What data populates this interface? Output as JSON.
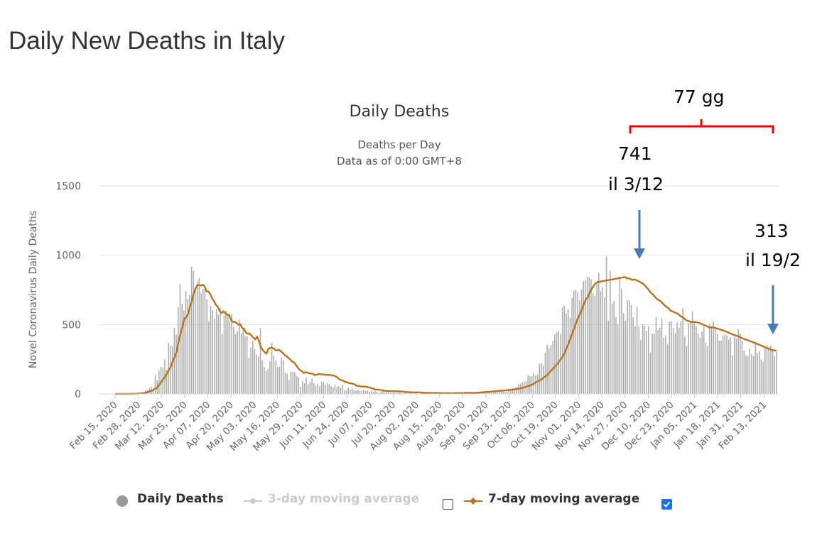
{
  "page_title": "Daily New Deaths in Italy",
  "colors": {
    "bar": "#aaaaaa",
    "ma7": "#b8741a",
    "ma3_disabled": "#cccccc",
    "grid": "#e6e6e6",
    "annotation_bracket": "#ff0000",
    "annotation_arrow": "#4a7ab5",
    "checkbox_checked": "#1a73e8"
  },
  "legend": {
    "daily_deaths": "Daily Deaths",
    "ma3": "3-day moving average",
    "ma7": "7-day moving average",
    "ma3_checked": false,
    "ma7_checked": true
  },
  "annotations": {
    "bracket_label": "77 gg",
    "peak_value": "741",
    "peak_date": "il 3/12",
    "latest_value": "313",
    "latest_date": "il 19/2"
  },
  "chart_data": {
    "type": "bar",
    "title": "Daily Deaths",
    "subtitle_line1": "Deaths per Day",
    "subtitle_line2": "Data as of 0:00 GMT+8",
    "ylabel": "Novel Coronavirus Daily Deaths",
    "xlabel": "",
    "ylim": [
      0,
      1500
    ],
    "yticks": [
      0,
      500,
      1000,
      1500
    ],
    "grid": true,
    "legend_position": "bottom",
    "x_start": "Feb 15, 2020",
    "x_end": "Feb 20, 2021",
    "x_tick_labels": [
      "Feb 15, 2020",
      "Feb 28, 2020",
      "Mar 12, 2020",
      "Mar 25, 2020",
      "Apr 07, 2020",
      "Apr 20, 2020",
      "May 03, 2020",
      "May 16, 2020",
      "May 29, 2020",
      "Jun 11, 2020",
      "Jun 24, 2020",
      "Jul 07, 2020",
      "Jul 20, 2020",
      "Aug 02, 2020",
      "Aug 15, 2020",
      "Aug 28, 2020",
      "Sep 10, 2020",
      "Sep 23, 2020",
      "Oct 06, 2020",
      "Oct 19, 2020",
      "Nov 01, 2020",
      "Nov 14, 2020",
      "Nov 27, 2020",
      "Dec 10, 2020",
      "Dec 23, 2020",
      "Jan 05, 2021",
      "Jan 18, 2021",
      "Jan 31, 2021",
      "Feb 13, 2021"
    ],
    "series": [
      {
        "name": "Daily Deaths",
        "kind": "bar",
        "values": [
          0,
          0,
          0,
          0,
          0,
          0,
          0,
          1,
          2,
          3,
          2,
          4,
          5,
          8,
          12,
          11,
          27,
          28,
          41,
          49,
          36,
          133,
          97,
          168,
          196,
          189,
          250,
          175,
          368,
          349,
          345,
          475,
          427,
          627,
          793,
          651,
          601,
          743,
          683,
          712,
          919,
          889,
          756,
          812,
          837,
          727,
          760,
          766,
          681,
          525,
          636,
          604,
          542,
          610,
          570,
          619,
          431,
          566,
          602,
          578,
          525,
          575,
          482,
          433,
          454,
          534,
          437,
          464,
          420,
          415,
          260,
          333,
          382,
          323,
          285,
          269,
          474,
          243,
          194,
          165,
          179,
          236,
          369,
          274,
          243,
          194,
          195,
          262,
          242,
          153,
          145,
          99,
          162,
          161,
          156,
          130,
          119,
          50,
          92,
          78,
          117,
          70,
          87,
          111,
          75,
          60,
          71,
          53,
          88,
          85,
          65,
          79,
          71,
          56,
          47,
          67,
          49,
          55,
          44,
          66,
          26,
          26,
          46,
          31,
          41,
          26,
          23,
          30,
          22,
          21,
          30,
          21,
          24,
          17,
          21,
          14,
          24,
          15,
          9,
          13,
          25,
          11,
          20,
          12,
          9,
          9,
          13,
          6,
          11,
          10,
          5,
          4,
          8,
          5,
          12,
          7,
          12,
          9,
          6,
          3,
          6,
          5,
          7,
          6,
          8,
          5,
          4,
          6,
          2,
          5,
          2,
          8,
          8,
          6,
          4,
          8,
          6,
          9,
          13,
          7,
          8,
          4,
          5,
          6,
          10,
          10,
          6,
          9,
          12,
          14,
          10,
          15,
          13,
          20,
          24,
          9,
          13,
          16,
          22,
          18,
          17,
          23,
          28,
          19,
          14,
          16,
          39,
          22,
          43,
          39,
          47,
          69,
          73,
          83,
          91,
          89,
          136,
          127,
          128,
          151,
          131,
          141,
          217,
          221,
          207,
          297,
          352,
          331,
          353,
          382,
          428,
          444,
          454,
          432,
          623,
          636,
          580,
          613,
          550,
          692,
          743,
          754,
          731,
          675,
          753,
          812,
          822,
          846,
          840,
          827,
          725,
          707,
          801,
          872,
          741,
          769,
          699,
          993,
          528,
          887,
          649,
          672,
          555,
          499,
          846,
          761,
          581,
          528,
          676,
          674,
          642,
          553,
          487,
          628,
          486,
          388,
          502,
          491,
          457,
          488,
          298,
          436,
          433,
          555,
          460,
          478,
          546,
          405,
          421,
          357,
          522,
          524,
          474,
          438,
          516,
          477,
          526,
          617,
          414,
          346,
          509,
          521,
          596,
          528,
          489,
          436,
          404,
          450,
          483,
          370,
          345,
          501,
          489,
          524,
          476,
          432,
          384,
          384,
          421,
          428,
          421,
          390,
          408,
          276,
          413,
          398,
          467,
          436,
          385,
          314,
          279,
          272,
          326,
          288,
          271,
          374,
          295,
          309,
          247,
          231,
          333,
          353,
          336,
          347,
          315,
          274,
          301
        ]
      },
      {
        "name": "7-day moving average",
        "kind": "line",
        "values": [
          0,
          0,
          0,
          0,
          0,
          0,
          0,
          0,
          0,
          1,
          1,
          1,
          2,
          3,
          4,
          5,
          8,
          11,
          16,
          21,
          24,
          36,
          40,
          55,
          73,
          93,
          111,
          127,
          153,
          178,
          201,
          240,
          270,
          306,
          379,
          434,
          482,
          540,
          552,
          577,
          627,
          665,
          723,
          758,
          785,
          783,
          781,
          788,
          772,
          739,
          738,
          719,
          688,
          667,
          641,
          628,
          598,
          583,
          595,
          582,
          570,
          571,
          534,
          519,
          520,
          512,
          499,
          503,
          476,
          469,
          443,
          434,
          435,
          421,
          406,
          393,
          413,
          381,
          339,
          317,
          301,
          290,
          325,
          332,
          334,
          327,
          314,
          316,
          318,
          303,
          293,
          277,
          271,
          257,
          245,
          230,
          226,
          204,
          186,
          171,
          164,
          151,
          158,
          152,
          149,
          147,
          144,
          135,
          139,
          144,
          141,
          141,
          140,
          137,
          136,
          138,
          133,
          133,
          126,
          118,
          106,
          99,
          96,
          86,
          85,
          78,
          77,
          74,
          71,
          60,
          58,
          55,
          54,
          52,
          53,
          49,
          47,
          42,
          39,
          33,
          31,
          30,
          29,
          25,
          23,
          22,
          20,
          20,
          20,
          20,
          19,
          19,
          18,
          18,
          16,
          14,
          14,
          13,
          12,
          12,
          11,
          11,
          11,
          11,
          10,
          9,
          8,
          7,
          7,
          7,
          6,
          7,
          7,
          6,
          6,
          6,
          5,
          5,
          6,
          5,
          5,
          5,
          6,
          6,
          6,
          6,
          6,
          7,
          8,
          8,
          8,
          8,
          8,
          8,
          8,
          10,
          11,
          12,
          13,
          14,
          15,
          16,
          18,
          19,
          20,
          22,
          23,
          23,
          25,
          26,
          27,
          28,
          30,
          31,
          34,
          36,
          38,
          40,
          44,
          47,
          51,
          56,
          60,
          66,
          73,
          82,
          89,
          96,
          105,
          113,
          123,
          133,
          148,
          163,
          177,
          191,
          206,
          221,
          242,
          258,
          279,
          309,
          341,
          374,
          409,
          446,
          484,
          524,
          555,
          581,
          616,
          653,
          685,
          697,
          730,
          756,
          777,
          796,
          806,
          808,
          811,
          813,
          816,
          819,
          821,
          823,
          826,
          828,
          831,
          833,
          836,
          838,
          841,
          843,
          834,
          832,
          828,
          822,
          826,
          820,
          814,
          806,
          800,
          789,
          776,
          760,
          742,
          726,
          716,
          698,
          686,
          676,
          668,
          654,
          640,
          628,
          621,
          604,
          597,
          591,
          585,
          580,
          568,
          558,
          551,
          538,
          529,
          525,
          519,
          519,
          519,
          517,
          515,
          510,
          505,
          497,
          492,
          486,
          479,
          479,
          479,
          477,
          473,
          468,
          464,
          459,
          455,
          449,
          444,
          438,
          432,
          427,
          422,
          418,
          412,
          405,
          400,
          395,
          390,
          385,
          380,
          375,
          370,
          364,
          359,
          353,
          347,
          341,
          335,
          330,
          325,
          320,
          316,
          313,
          313
        ]
      },
      {
        "name": "3-day moving average",
        "kind": "line",
        "enabled": false,
        "values": []
      }
    ]
  }
}
